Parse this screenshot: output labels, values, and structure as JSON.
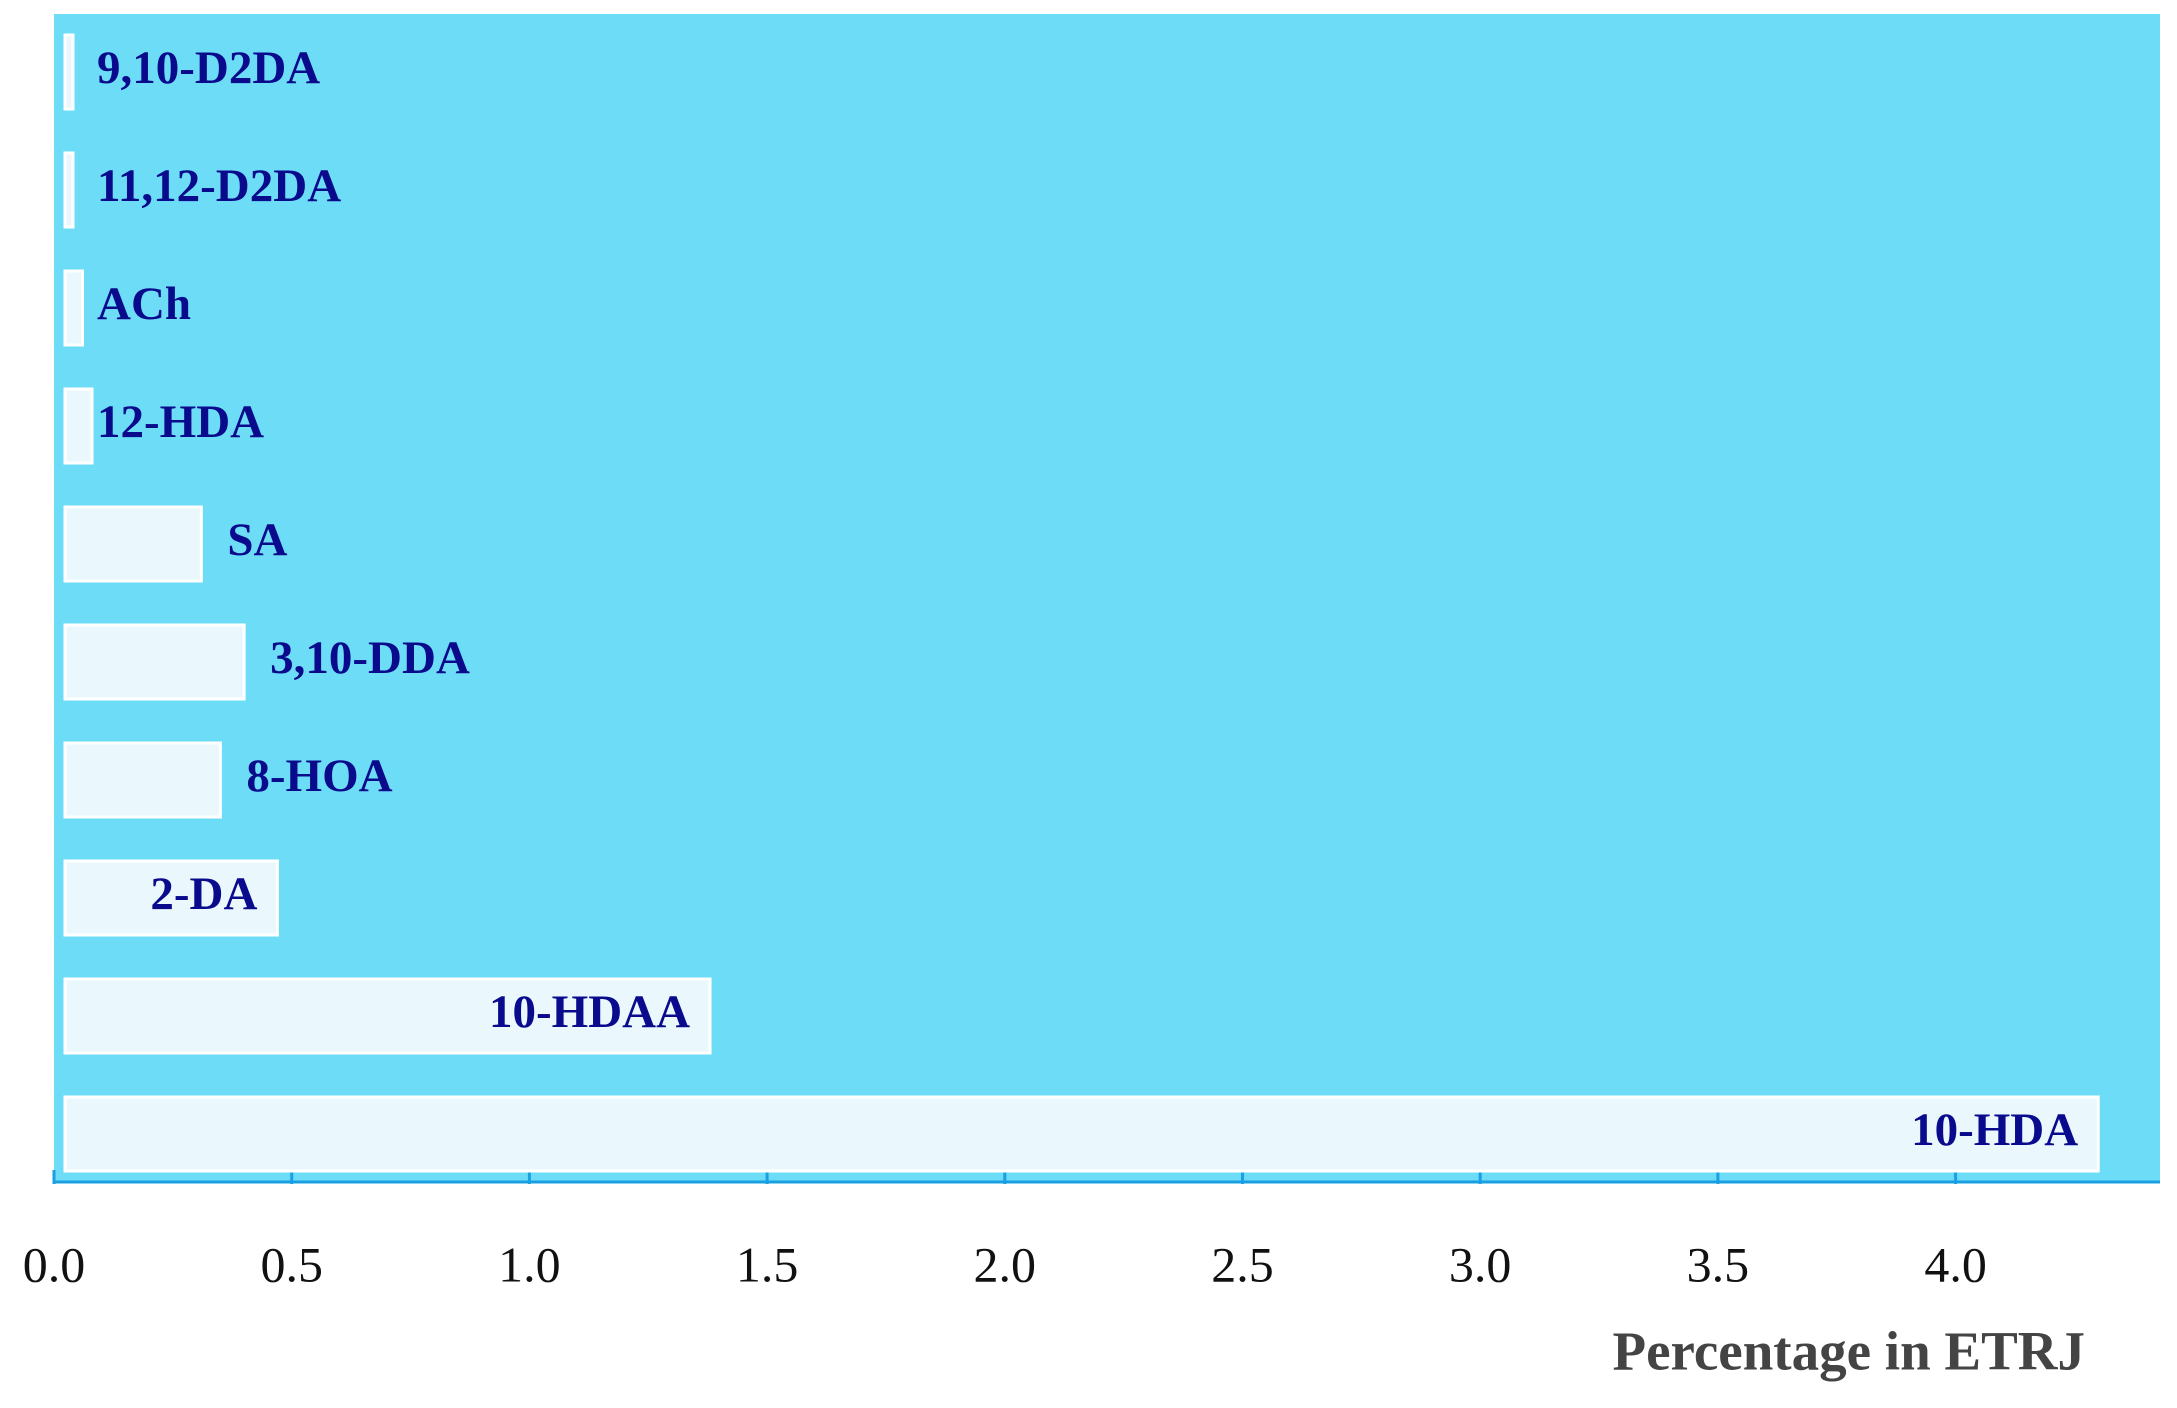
{
  "chart_data": {
    "type": "hbar",
    "categories": [
      "9,10-D2DA",
      "11,12-D2DA",
      "ACh",
      "12-HDA",
      "SA",
      "3,10-DDA",
      "8-HOA",
      "2-DA",
      "10-HDAA",
      "10-HDA"
    ],
    "values": [
      0.04,
      0.04,
      0.06,
      0.08,
      0.31,
      0.4,
      0.35,
      0.47,
      1.38,
      4.3
    ],
    "color": "#eaf8fd",
    "background": "#6ddcf7",
    "label_color": "#0a0a8c",
    "xlabel": "Percentage in ETRJ",
    "xlim": [
      0,
      4.43
    ],
    "xticks": [
      {
        "value": 0,
        "label": "0.0"
      },
      0.5,
      {
        "value": 1,
        "label": "1.0"
      },
      1.5,
      {
        "value": 2,
        "label": "2.0"
      },
      2.5,
      {
        "value": 3,
        "label": "3.0"
      },
      3.5,
      {
        "value": 4,
        "label": "4.0"
      }
    ]
  }
}
